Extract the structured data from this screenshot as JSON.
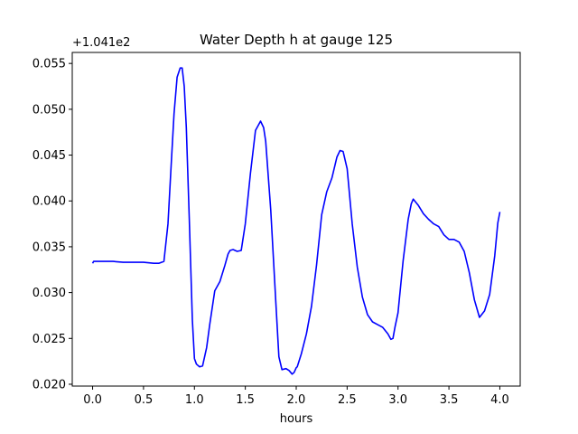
{
  "chart_data": {
    "type": "line",
    "title": "Water Depth h at gauge 125",
    "xlabel": "hours",
    "ylabel": "",
    "y_offset_label": "+1.041e2",
    "xlim": [
      -0.2,
      4.2
    ],
    "ylim": [
      0.0198,
      0.0562
    ],
    "xticks": [
      0.0,
      0.5,
      1.0,
      1.5,
      2.0,
      2.5,
      3.0,
      3.5,
      4.0
    ],
    "xtick_labels": [
      "0.0",
      "0.5",
      "1.0",
      "1.5",
      "2.0",
      "2.5",
      "3.0",
      "3.5",
      "4.0"
    ],
    "yticks": [
      0.02,
      0.025,
      0.03,
      0.035,
      0.04,
      0.045,
      0.05,
      0.055
    ],
    "ytick_labels": [
      "0.020",
      "0.025",
      "0.030",
      "0.035",
      "0.040",
      "0.045",
      "0.050",
      "0.055"
    ],
    "grid": false,
    "series": [
      {
        "color": "#0000ff",
        "x": [
          0.0,
          0.01,
          0.1,
          0.2,
          0.3,
          0.4,
          0.5,
          0.6,
          0.65,
          0.7,
          0.74,
          0.77,
          0.8,
          0.83,
          0.86,
          0.88,
          0.9,
          0.92,
          0.95,
          0.98,
          1.0,
          1.02,
          1.05,
          1.08,
          1.12,
          1.15,
          1.2,
          1.25,
          1.3,
          1.33,
          1.35,
          1.38,
          1.42,
          1.46,
          1.5,
          1.55,
          1.6,
          1.65,
          1.68,
          1.7,
          1.75,
          1.8,
          1.83,
          1.86,
          1.9,
          1.93,
          1.96,
          1.98,
          2.0,
          2.01,
          2.05,
          2.1,
          2.15,
          2.2,
          2.25,
          2.3,
          2.35,
          2.4,
          2.43,
          2.46,
          2.5,
          2.55,
          2.6,
          2.65,
          2.7,
          2.75,
          2.8,
          2.85,
          2.9,
          2.93,
          2.95,
          2.96,
          2.97,
          3.0,
          3.05,
          3.1,
          3.13,
          3.15,
          3.2,
          3.25,
          3.3,
          3.35,
          3.4,
          3.45,
          3.5,
          3.55,
          3.6,
          3.65,
          3.7,
          3.75,
          3.8,
          3.85,
          3.9,
          3.95,
          3.98,
          4.0
        ],
        "y": [
          0.0332,
          0.0334,
          0.0334,
          0.0334,
          0.0333,
          0.0333,
          0.0333,
          0.0332,
          0.0332,
          0.0334,
          0.0375,
          0.0435,
          0.0495,
          0.0535,
          0.0545,
          0.0545,
          0.0525,
          0.048,
          0.038,
          0.027,
          0.0228,
          0.0222,
          0.0219,
          0.022,
          0.024,
          0.0265,
          0.0302,
          0.0312,
          0.033,
          0.0342,
          0.0346,
          0.0347,
          0.0345,
          0.0346,
          0.0375,
          0.043,
          0.0477,
          0.0487,
          0.048,
          0.0465,
          0.039,
          0.0288,
          0.023,
          0.0216,
          0.0217,
          0.0215,
          0.0211,
          0.0213,
          0.0218,
          0.0219,
          0.0233,
          0.0255,
          0.0285,
          0.033,
          0.0385,
          0.041,
          0.0425,
          0.0448,
          0.0455,
          0.0454,
          0.0435,
          0.0375,
          0.0328,
          0.0295,
          0.0276,
          0.0268,
          0.0265,
          0.0262,
          0.0255,
          0.0249,
          0.025,
          0.0256,
          0.0262,
          0.0278,
          0.0335,
          0.038,
          0.0397,
          0.0402,
          0.0395,
          0.0386,
          0.038,
          0.0375,
          0.0372,
          0.0363,
          0.0358,
          0.0358,
          0.0355,
          0.0345,
          0.0322,
          0.0292,
          0.0273,
          0.028,
          0.0298,
          0.034,
          0.0376,
          0.0388
        ]
      }
    ]
  }
}
